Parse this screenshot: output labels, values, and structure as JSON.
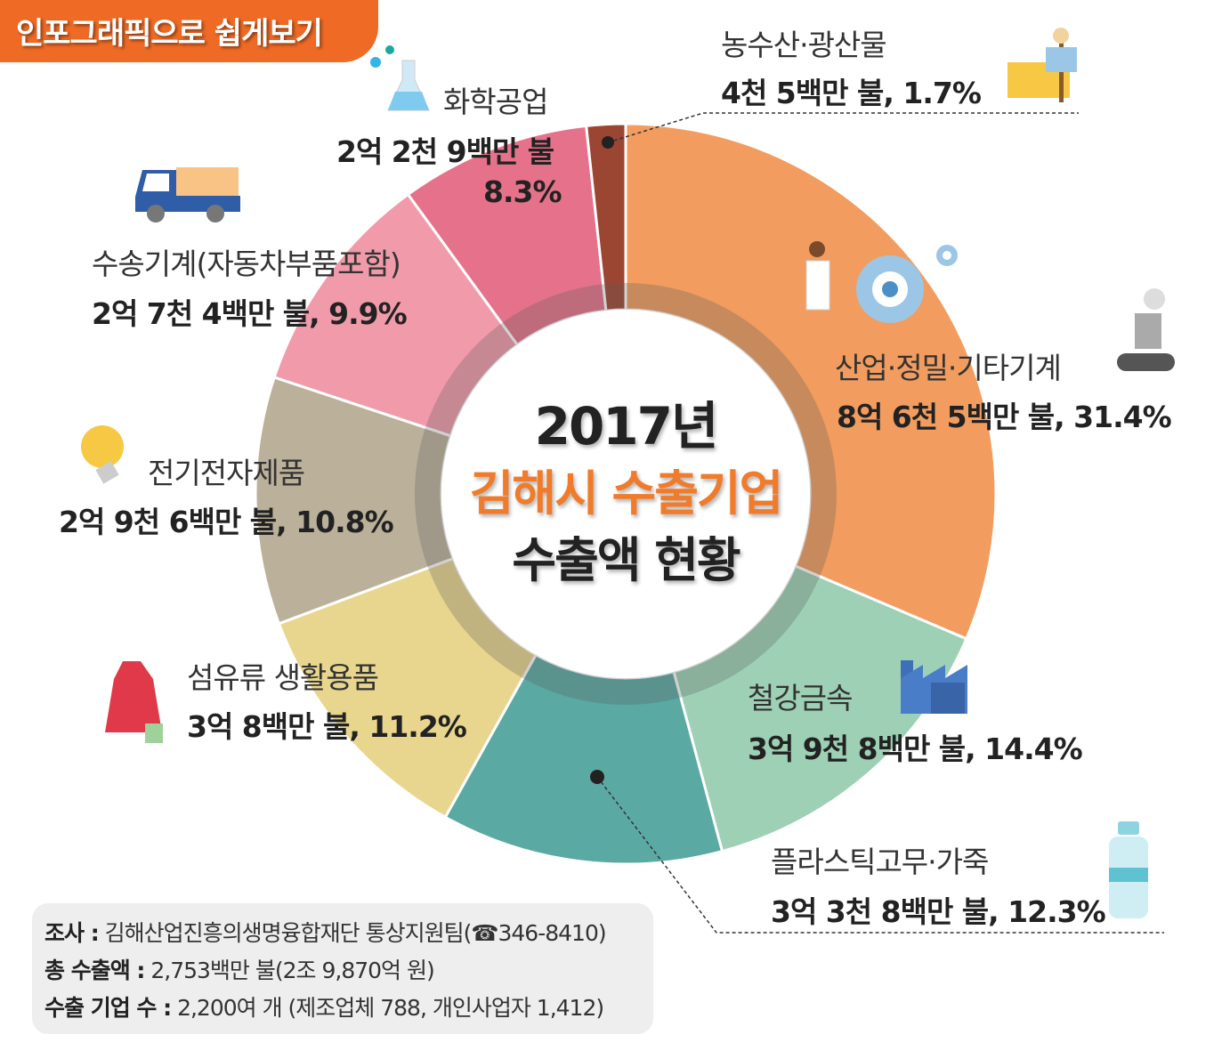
{
  "badge": {
    "label": "인포그래픽으로 쉽게보기"
  },
  "center": {
    "year": "2017년",
    "line1": "김해시 수출기업",
    "line2": "수출액 현황"
  },
  "chart_data": {
    "type": "pie",
    "donut": true,
    "title": "2017년 김해시 수출기업 수출액 현황",
    "slices": [
      {
        "label": "산업·정밀·기타기계",
        "amount": "8억 6천 5백만 불",
        "percent": 31.4,
        "color": "#F29D5F"
      },
      {
        "label": "철강금속",
        "amount": "3억 9천 8백만 불",
        "percent": 14.4,
        "color": "#9DD0B5"
      },
      {
        "label": "플라스틱고무·가죽",
        "amount": "3억 3천 8백만 불",
        "percent": 12.3,
        "color": "#5AA9A2"
      },
      {
        "label": "섬유류 생활용품",
        "amount": "3억 8백만 불",
        "percent": 11.2,
        "color": "#E8D68E"
      },
      {
        "label": "전기전자제품",
        "amount": "2억 9천 6백만 불",
        "percent": 10.8,
        "color": "#BBB09A"
      },
      {
        "label": "수송기계(자동차부품포함)",
        "amount": "2억 7천 4백만 불",
        "percent": 9.9,
        "color": "#F09AAA"
      },
      {
        "label": "화학공업",
        "amount": "2억 2천 9백만 불",
        "percent": 8.3,
        "color": "#E5728A"
      },
      {
        "label": "농수산·광산물",
        "amount": "4천 5백만 불",
        "percent": 1.7,
        "color": "#9A4633"
      }
    ]
  },
  "labels": {
    "machinery": {
      "name": "산업·정밀·기타기계",
      "value": "8억 6천 5백만 불, 31.4%"
    },
    "steel": {
      "name": "철강금속",
      "value": "3억 9천 8백만 불, 14.4%"
    },
    "plastic": {
      "name": "플라스틱고무·가죽",
      "value": "3억 3천 8백만 불, 12.3%"
    },
    "textile": {
      "name": "섬유류 생활용품",
      "value": "3억 8백만 불, 11.2%"
    },
    "electronics": {
      "name": "전기전자제품",
      "value": "2억 9천 6백만 불, 10.8%"
    },
    "transport": {
      "name": "수송기계(자동차부품포함)",
      "value": "2억 7천 4백만 불, 9.9%"
    },
    "chemical": {
      "name": "화학공업",
      "value": "2억 2천 9백만 불",
      "pct": "8.3%"
    },
    "agri": {
      "name": "농수산·광산물",
      "value": "4천 5백만 불, 1.7%"
    }
  },
  "note": {
    "survey_label": "조사 :",
    "survey": "김해산업진흥의생명융합재단 통상지원팀(☎346-8410)",
    "total_label": "총 수출액 :",
    "total": "2,753백만 불(2조 9,870억 원)",
    "count_label": "수출 기업 수 :",
    "count": "2,200여 개 (제조업체 788, 개인사업자 1,412)"
  }
}
